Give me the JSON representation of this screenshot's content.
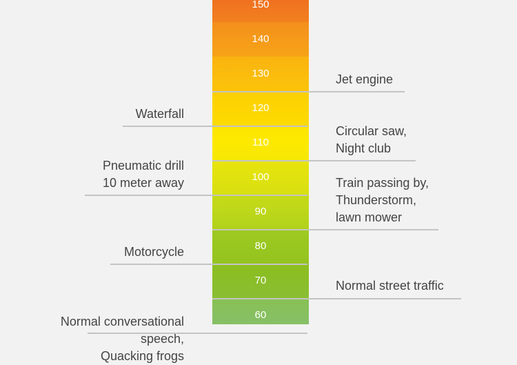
{
  "scale": {
    "ticks": [
      150,
      140,
      130,
      120,
      110,
      100,
      90,
      80,
      70,
      60
    ],
    "colors": [
      "#f07a1f",
      "#f59a1a",
      "#fbbd0b",
      "#fdd501",
      "#fdea00",
      "#e2e20e",
      "#bad61b",
      "#96c520",
      "#8abd23",
      "#87c06a"
    ]
  },
  "annotations_left": [
    {
      "lines": [
        "Waterfall"
      ],
      "level": 120
    },
    {
      "lines": [
        "Pneumatic drill",
        "10 meter away"
      ],
      "level": 100
    },
    {
      "lines": [
        "Motorcycle"
      ],
      "level": 80
    },
    {
      "lines": [
        "Normal conversational",
        "speech,",
        "Quacking frogs"
      ],
      "level": 60
    }
  ],
  "annotations_right": [
    {
      "lines": [
        "Jet engine"
      ],
      "level": 130
    },
    {
      "lines": [
        "Circular saw,",
        "Night club"
      ],
      "level": 110
    },
    {
      "lines": [
        "Train passing by,",
        "Thunderstorm,",
        "lawn mower"
      ],
      "level": 90
    },
    {
      "lines": [
        "Normal street traffic"
      ],
      "level": 70
    }
  ]
}
